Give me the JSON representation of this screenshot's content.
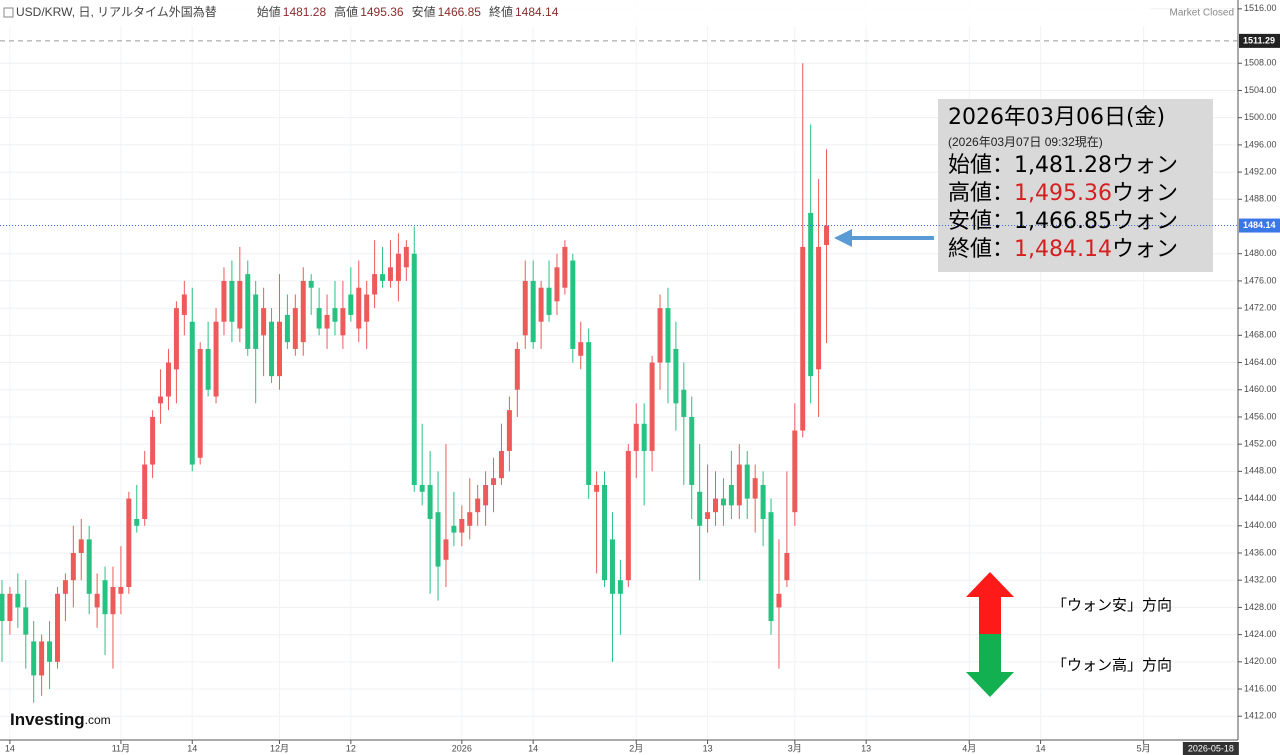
{
  "chart_data": {
    "type": "candlestick",
    "header": {
      "symbol": "USD/KRW, 日, リアルタイム外国為替",
      "labels": [
        "始値",
        "高値",
        "安値",
        "終値"
      ],
      "status": "Market Closed"
    },
    "logo": "Investing",
    "logo_suffix": ".com",
    "categories": [
      null,
      null,
      null,
      null,
      null,
      null,
      null,
      null,
      null,
      null,
      null,
      null,
      null,
      null,
      null,
      null,
      null,
      null,
      null,
      null,
      null,
      null,
      null,
      null,
      null,
      null,
      null,
      null,
      null,
      null,
      null,
      null,
      null,
      null,
      null,
      null,
      null,
      null,
      null,
      null,
      null,
      null,
      null,
      null,
      null,
      null,
      null,
      null,
      null,
      null,
      null,
      null,
      null,
      null,
      null,
      null,
      null,
      null,
      null,
      null,
      null,
      null,
      null,
      null,
      null,
      null,
      null,
      null,
      null,
      null,
      null,
      null,
      null,
      null,
      null,
      null,
      null,
      null,
      null,
      null,
      null,
      null,
      null,
      null,
      null,
      null,
      null,
      null,
      null,
      null,
      null,
      null,
      null,
      null,
      null,
      null,
      null,
      null,
      null,
      null,
      null,
      null,
      null,
      null,
      null
    ],
    "open": [
      1430,
      1426,
      1430,
      1428,
      1423,
      1418,
      1423,
      1420,
      1430,
      1432,
      1436,
      1438,
      1428,
      1432,
      1427,
      1430,
      1431,
      1441,
      1441,
      1449,
      1458,
      1459,
      1463,
      1471,
      1470,
      1450,
      1466,
      1459,
      1470,
      1476,
      1469,
      1477,
      1474,
      1468,
      1470,
      1462,
      1471,
      1466,
      1467,
      1476,
      1472,
      1469,
      1472,
      1468,
      1474,
      1469,
      1470,
      1474,
      1477,
      1476,
      1476,
      1478,
      1480,
      1446,
      1446,
      1442,
      1435,
      1440,
      1439,
      1440,
      1442,
      1443,
      1446,
      1447,
      1451,
      1460,
      1468,
      1476,
      1470,
      1475,
      1473,
      1475,
      1479,
      1465,
      1467,
      1445,
      1446,
      1438,
      1432,
      1432,
      1451,
      1455,
      1451,
      1464,
      1472,
      1466,
      1460,
      1456,
      1445,
      1441,
      1442,
      1444,
      1446,
      1443,
      1449,
      1444,
      1446,
      1442,
      1428,
      1432,
      1442,
      1454,
      1486,
      1463,
      1481.28
    ],
    "high": [
      1432,
      1431,
      1433,
      1432,
      1426,
      1424,
      1426,
      1431,
      1433,
      1440,
      1441,
      1440,
      1433,
      1434,
      1434,
      1437,
      1445,
      1446,
      1451,
      1457,
      1463,
      1466,
      1473,
      1476,
      1475,
      1467,
      1470,
      1472,
      1478,
      1479,
      1481,
      1479,
      1476,
      1475,
      1472,
      1477,
      1474,
      1474,
      1478,
      1477,
      1475,
      1474,
      1476,
      1476,
      1478,
      1479,
      1476,
      1482,
      1481,
      1482,
      1483,
      1482,
      1484,
      1455,
      1451,
      1448,
      1452,
      1445,
      1443,
      1447,
      1446,
      1448,
      1450,
      1455,
      1459,
      1467,
      1479,
      1479,
      1476,
      1479,
      1480,
      1482,
      1480,
      1470,
      1469,
      1448,
      1448,
      1442,
      1435,
      1452,
      1458,
      1458,
      1465,
      1474,
      1475,
      1470,
      1464,
      1459,
      1452,
      1449,
      1448,
      1447,
      1451,
      1452,
      1451,
      1449,
      1448,
      1444,
      1438,
      1448,
      1458,
      1508,
      1499,
      1491,
      1495.36
    ],
    "low": [
      1420,
      1424,
      1425,
      1419,
      1414,
      1415,
      1416,
      1419,
      1426,
      1428,
      1432,
      1427,
      1425,
      1421,
      1419,
      1427,
      1430,
      1439,
      1440,
      1447,
      1455,
      1457,
      1458,
      1468,
      1448,
      1449,
      1459,
      1458,
      1468,
      1467,
      1467,
      1465,
      1458,
      1462,
      1461,
      1460,
      1466,
      1465,
      1465,
      1471,
      1468,
      1466,
      1468,
      1466,
      1470,
      1467,
      1466,
      1472,
      1475,
      1475,
      1473,
      1476,
      1445,
      1443,
      1430,
      1429,
      1431,
      1437,
      1437,
      1438,
      1440,
      1440,
      1442,
      1446,
      1448,
      1456,
      1466,
      1466,
      1466,
      1470,
      1471,
      1474,
      1464,
      1463,
      1444,
      1433,
      1431,
      1420,
      1424,
      1431,
      1447,
      1443,
      1448,
      1460,
      1458,
      1454,
      1446,
      1441,
      1432,
      1439,
      1440,
      1440,
      1441,
      1441,
      1441,
      1439,
      1437,
      1424,
      1419,
      1431,
      1440,
      1453,
      1458,
      1456,
      1466.85
    ],
    "close": [
      1426,
      1430,
      1428,
      1424,
      1418,
      1423,
      1420,
      1430,
      1432,
      1436,
      1438,
      1430,
      1430,
      1427,
      1431,
      1431,
      1444,
      1440,
      1449,
      1456,
      1459,
      1464,
      1472,
      1474,
      1449,
      1466,
      1460,
      1470,
      1476,
      1470,
      1476,
      1466,
      1466,
      1472,
      1462,
      1470,
      1467,
      1472,
      1476,
      1475,
      1469,
      1471,
      1470,
      1472,
      1471,
      1475,
      1474,
      1477,
      1476,
      1478,
      1480,
      1481,
      1446,
      1445,
      1441,
      1434,
      1438,
      1439,
      1441,
      1442,
      1444,
      1446,
      1447,
      1451,
      1457,
      1466,
      1476,
      1467,
      1475,
      1471,
      1478,
      1481,
      1466,
      1467,
      1446,
      1446,
      1432,
      1430,
      1430,
      1451,
      1455,
      1451,
      1464,
      1472,
      1464,
      1458,
      1456,
      1446,
      1440,
      1442,
      1444,
      1443,
      1443,
      1449,
      1444,
      1447,
      1441,
      1426,
      1430,
      1436,
      1454,
      1481,
      1462,
      1481,
      1484.14
    ],
    "up_color": "#ee5a5a",
    "down_color": "#26c281",
    "ylim": [
      1408.8,
      1517.3
    ],
    "yticks": [
      {
        "value": 1412,
        "label": "1412.00"
      },
      {
        "value": 1416,
        "label": "1416.00"
      },
      {
        "value": 1420,
        "label": "1420.00"
      },
      {
        "value": 1424,
        "label": "1424.00"
      },
      {
        "value": 1428,
        "label": "1428.00"
      },
      {
        "value": 1432,
        "label": "1432.00"
      },
      {
        "value": 1436,
        "label": "1436.00"
      },
      {
        "value": 1440,
        "label": "1440.00"
      },
      {
        "value": 1444,
        "label": "1444.00"
      },
      {
        "value": 1448,
        "label": "1448.00"
      },
      {
        "value": 1452,
        "label": "1452.00"
      },
      {
        "value": 1456,
        "label": "1456.00"
      },
      {
        "value": 1460,
        "label": "1460.00"
      },
      {
        "value": 1464,
        "label": "1464.00"
      },
      {
        "value": 1468,
        "label": "1468.00"
      },
      {
        "value": 1472,
        "label": "1472.00"
      },
      {
        "value": 1476,
        "label": "1476.00"
      },
      {
        "value": 1480,
        "label": "1480.00"
      },
      {
        "value": 1488,
        "label": "1488.00"
      },
      {
        "value": 1492,
        "label": "1492.00"
      },
      {
        "value": 1496,
        "label": "1496.00"
      },
      {
        "value": 1500,
        "label": "1500.00"
      },
      {
        "value": 1504,
        "label": "1504.00"
      },
      {
        "value": 1508,
        "label": "1508.00"
      },
      {
        "value": 1516,
        "label": "1516.00"
      }
    ],
    "xlim": [
      -0.25,
      155.9
    ],
    "xticks": [
      {
        "value": 1,
        "label": "14"
      },
      {
        "value": 15,
        "label": "11月"
      },
      {
        "value": 24,
        "label": "14"
      },
      {
        "value": 35,
        "label": "12月"
      },
      {
        "value": 44,
        "label": "12"
      },
      {
        "value": 58,
        "label": "2026"
      },
      {
        "value": 67,
        "label": "14"
      },
      {
        "value": 80,
        "label": "2月"
      },
      {
        "value": 89,
        "label": "13"
      },
      {
        "value": 100,
        "label": "3月"
      },
      {
        "value": 109,
        "label": "13"
      },
      {
        "value": 122,
        "label": "4月"
      },
      {
        "value": 131,
        "label": "14"
      },
      {
        "value": 144,
        "label": "5月"
      }
    ],
    "x_cursor": {
      "value": 155,
      "label": "2026-05-18"
    },
    "top_line": 1511.29,
    "grid": true,
    "annotation": {
      "date": "2026年03月06日(金)",
      "as_of": "(2026年03月07日 09:32現在)",
      "unit": "ウォン",
      "items": [
        {
          "label": "始値：",
          "value": 1481.28,
          "text": "1,481.28",
          "color": "#000000"
        },
        {
          "label": "高値：",
          "value": 1495.36,
          "text": "1,495.36",
          "color": "#d42020"
        },
        {
          "label": "安値：",
          "value": 1466.85,
          "text": "1,466.85",
          "color": "#000000"
        },
        {
          "label": "終値：",
          "value": 1484.14,
          "text": "1,484.14",
          "color": "#d42020"
        }
      ]
    },
    "direction_legend": [
      "「ウォン安」方向",
      "「ウォン高」方向"
    ]
  }
}
